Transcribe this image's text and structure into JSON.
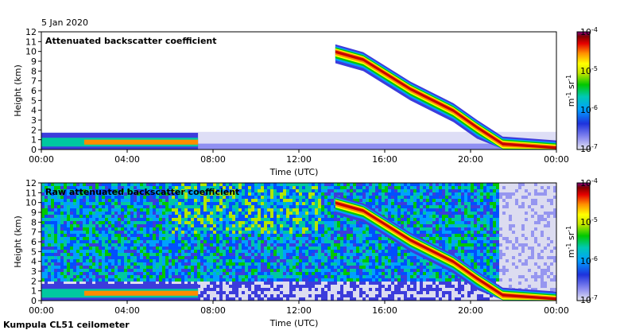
{
  "header": {
    "date": "5 Jan 2020",
    "footer": "Kumpula CL51 ceilometer"
  },
  "chart_data": [
    {
      "type": "heatmap",
      "title": "Attenuated backscatter coefficient",
      "xlabel": "Time (UTC)",
      "ylabel": "Height (km)",
      "x_ticks": [
        "00:00",
        "04:00",
        "08:00",
        "12:00",
        "16:00",
        "20:00",
        "00:00"
      ],
      "xlim_hours": [
        0,
        24
      ],
      "y_ticks": [
        "0",
        "1",
        "2",
        "3",
        "4",
        "5",
        "6",
        "7",
        "8",
        "9",
        "10",
        "11",
        "12"
      ],
      "ylim_km": [
        0,
        12
      ],
      "colorbar": {
        "scale": "log",
        "range": [
          1e-07,
          0.0001
        ],
        "tick_labels": [
          {
            "base": "10",
            "exp": "-4"
          },
          {
            "base": "10",
            "exp": "-5"
          },
          {
            "base": "10",
            "exp": "-6"
          },
          {
            "base": "10",
            "exp": "-7"
          }
        ],
        "unit_m": "m",
        "unit_m_exp": "-1",
        "unit_sr": "sr",
        "unit_sr_exp": "-1"
      },
      "features": {
        "boundary_layer": {
          "time_h": [
            0,
            7.3
          ],
          "top_km": 1.7
        },
        "descending_cloud": [
          {
            "time_h": 13.7,
            "height_km": 10.0
          },
          {
            "time_h": 15.0,
            "height_km": 9.2
          },
          {
            "time_h": 17.2,
            "height_km": 6.2
          },
          {
            "time_h": 19.2,
            "height_km": 4.0
          },
          {
            "time_h": 20.3,
            "height_km": 2.3
          },
          {
            "time_h": 21.5,
            "height_km": 0.6
          },
          {
            "time_h": 24.0,
            "height_km": 0.2
          }
        ],
        "noise": "masked"
      }
    },
    {
      "type": "heatmap",
      "title": "Raw attenuated backscatter coefficient",
      "xlabel": "Time (UTC)",
      "ylabel": "Height (km)",
      "x_ticks": [
        "00:00",
        "04:00",
        "08:00",
        "12:00",
        "16:00",
        "20:00",
        "00:00"
      ],
      "xlim_hours": [
        0,
        24
      ],
      "y_ticks": [
        "0",
        "1",
        "2",
        "3",
        "4",
        "5",
        "6",
        "7",
        "8",
        "9",
        "10",
        "11",
        "12"
      ],
      "ylim_km": [
        0,
        12
      ],
      "colorbar": {
        "scale": "log",
        "range": [
          1e-07,
          0.0001
        ],
        "tick_labels": [
          {
            "base": "10",
            "exp": "-4"
          },
          {
            "base": "10",
            "exp": "-5"
          },
          {
            "base": "10",
            "exp": "-6"
          },
          {
            "base": "10",
            "exp": "-7"
          }
        ],
        "unit_m": "m",
        "unit_m_exp": "-1",
        "unit_sr": "sr",
        "unit_sr_exp": "-1"
      },
      "features": {
        "boundary_layer": {
          "time_h": [
            0,
            7.3
          ],
          "top_km": 1.7
        },
        "descending_cloud": [
          {
            "time_h": 13.7,
            "height_km": 10.0
          },
          {
            "time_h": 15.0,
            "height_km": 9.2
          },
          {
            "time_h": 17.2,
            "height_km": 6.2
          },
          {
            "time_h": 19.2,
            "height_km": 4.0
          },
          {
            "time_h": 20.3,
            "height_km": 2.3
          },
          {
            "time_h": 21.5,
            "height_km": 0.6
          },
          {
            "time_h": 24.0,
            "height_km": 0.2
          }
        ],
        "noise": "unmasked"
      }
    }
  ]
}
